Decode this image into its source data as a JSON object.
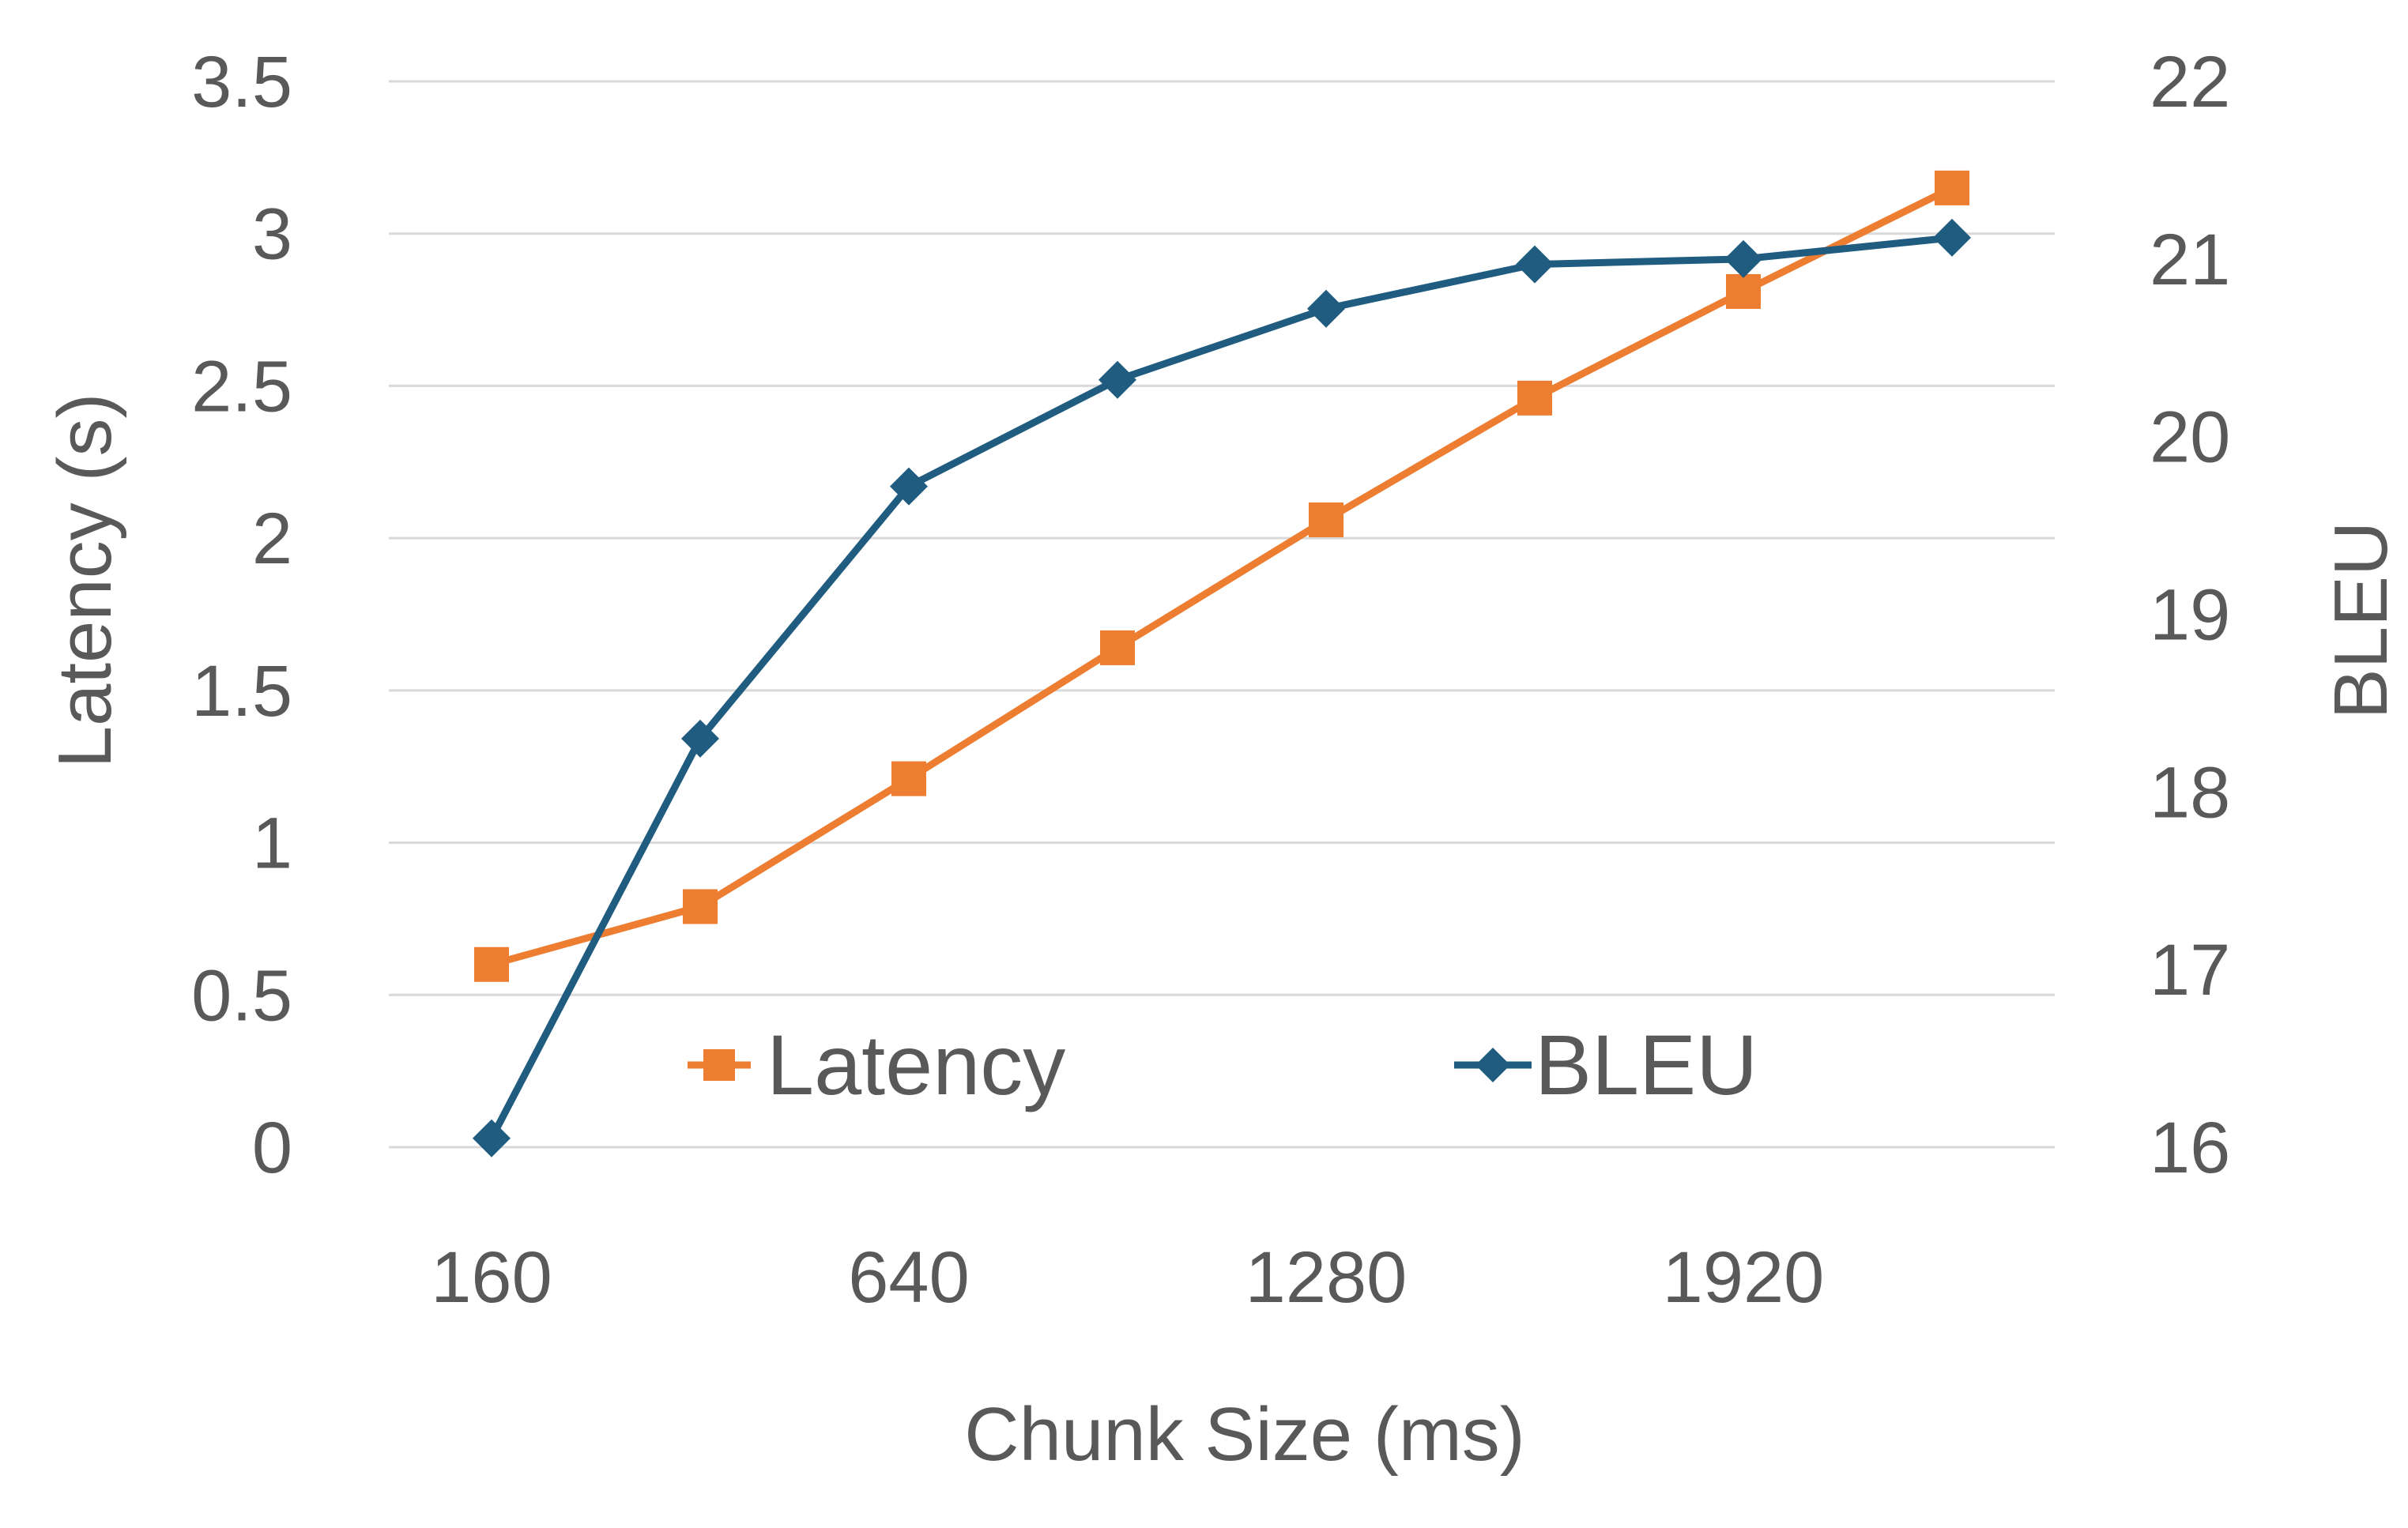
{
  "chart_data": {
    "type": "line",
    "xlabel": "Chunk Size (ms)",
    "ylabel": "Latency (s)",
    "y2label": "BLEU",
    "categories": [
      "160",
      "",
      "640",
      "",
      "1280",
      "",
      "1920",
      ""
    ],
    "x_tick_labels": [
      "160",
      "640",
      "1280",
      "1920"
    ],
    "ylim": [
      0,
      3.5
    ],
    "y_ticks": [
      "0",
      "0.5",
      "1",
      "1.5",
      "2",
      "2.5",
      "3",
      "3.5"
    ],
    "y2lim": [
      16,
      22
    ],
    "y2_ticks": [
      "16",
      "17",
      "18",
      "19",
      "20",
      "21",
      "22"
    ],
    "grid": true,
    "legend_position": "inside-bottom",
    "series": [
      {
        "name": "Latency",
        "axis": "left",
        "color": "#ED7D31",
        "marker": "square",
        "values": [
          0.6,
          0.79,
          1.21,
          1.64,
          2.06,
          2.46,
          2.81,
          3.15
        ]
      },
      {
        "name": "BLEU",
        "axis": "right",
        "color": "#1F5C80",
        "marker": "diamond",
        "values": [
          16.05,
          18.3,
          19.72,
          20.32,
          20.72,
          20.97,
          21.0,
          21.12
        ]
      }
    ]
  }
}
